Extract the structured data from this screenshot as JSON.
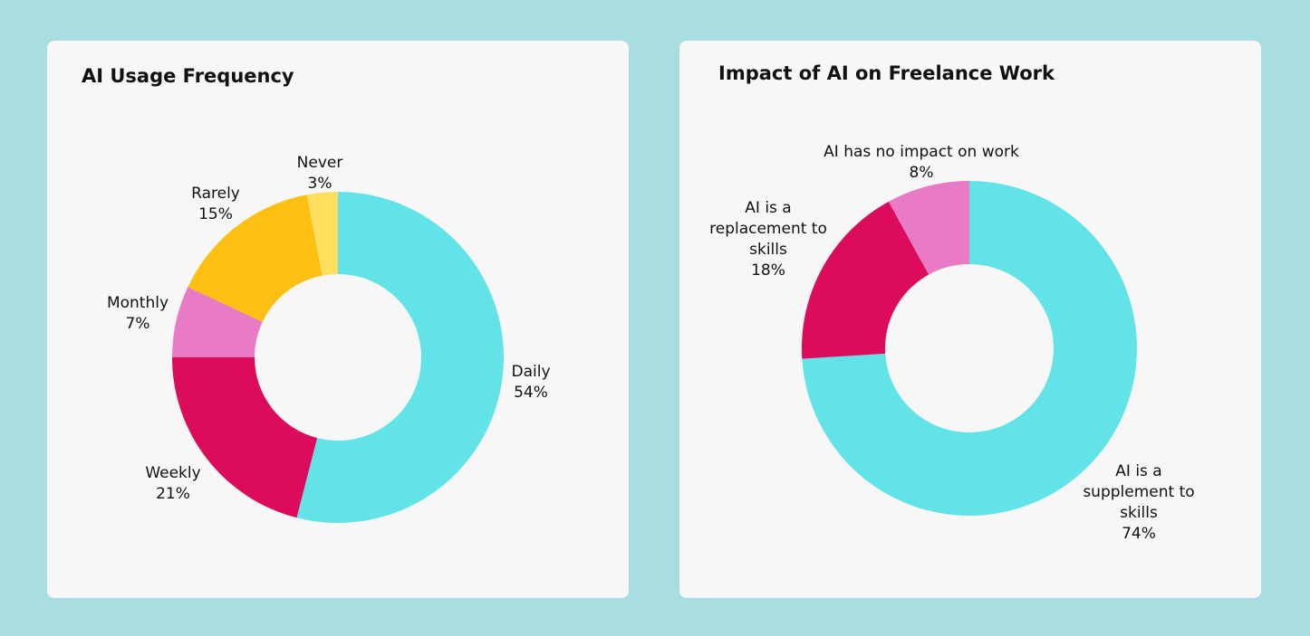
{
  "charts": [
    {
      "title": "AI Usage Frequency"
    },
    {
      "title": "Impact of AI on Freelance Work"
    }
  ],
  "chart_data": [
    {
      "type": "pie",
      "title": "AI Usage Frequency",
      "donut": true,
      "slices": [
        {
          "label": [
            "Daily"
          ],
          "value": 54,
          "value_label": "54%",
          "color": "#62e3e7"
        },
        {
          "label": [
            "Weekly"
          ],
          "value": 21,
          "value_label": "21%",
          "color": "#dc0b5b"
        },
        {
          "label": [
            "Monthly"
          ],
          "value": 7,
          "value_label": "7%",
          "color": "#e97bc6"
        },
        {
          "label": [
            "Rarely"
          ],
          "value": 15,
          "value_label": "15%",
          "color": "#fdbf11"
        },
        {
          "label": [
            "Never"
          ],
          "value": 3,
          "value_label": "3%",
          "color": "#ffdf5d"
        }
      ]
    },
    {
      "type": "pie",
      "title": "Impact of AI on Freelance Work",
      "donut": true,
      "slices": [
        {
          "label": [
            "AI is a",
            "supplement to",
            "skills"
          ],
          "value": 74,
          "value_label": "74%",
          "color": "#62e3e7"
        },
        {
          "label": [
            "AI is a",
            "replacement to",
            "skills"
          ],
          "value": 18,
          "value_label": "18%",
          "color": "#dc0b5b"
        },
        {
          "label": [
            "AI has no impact on work"
          ],
          "value": 8,
          "value_label": "8%",
          "color": "#e97bc6"
        }
      ]
    }
  ]
}
